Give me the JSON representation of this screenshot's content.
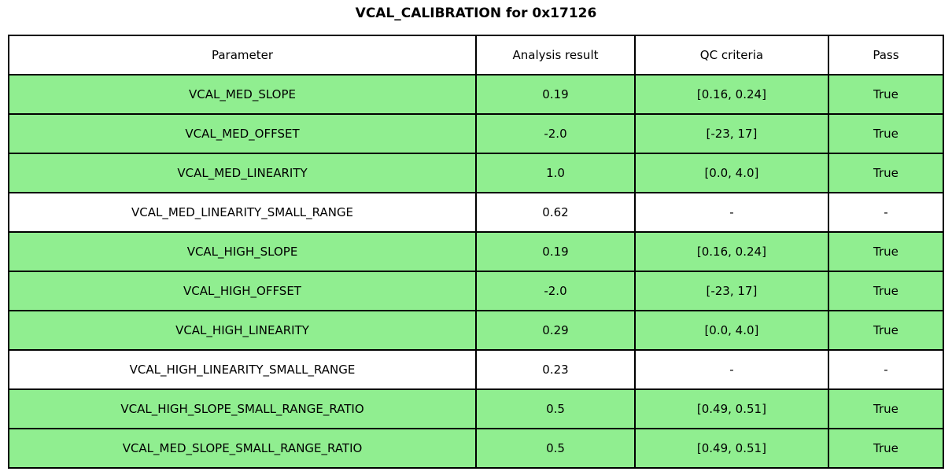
{
  "title": "VCAL_CALIBRATION for 0x17126",
  "colors": {
    "pass_row_background": "#90EE90",
    "default_row_background": "#ffffff",
    "border": "#000000",
    "text": "#000000"
  },
  "table": {
    "columns": [
      "Parameter",
      "Analysis result",
      "QC criteria",
      "Pass"
    ],
    "rows": [
      {
        "parameter": "VCAL_MED_SLOPE",
        "analysis_result": "0.19",
        "qc_criteria": "[0.16, 0.24]",
        "pass": "True",
        "highlighted": true
      },
      {
        "parameter": "VCAL_MED_OFFSET",
        "analysis_result": "-2.0",
        "qc_criteria": "[-23, 17]",
        "pass": "True",
        "highlighted": true
      },
      {
        "parameter": "VCAL_MED_LINEARITY",
        "analysis_result": "1.0",
        "qc_criteria": "[0.0, 4.0]",
        "pass": "True",
        "highlighted": true
      },
      {
        "parameter": "VCAL_MED_LINEARITY_SMALL_RANGE",
        "analysis_result": "0.62",
        "qc_criteria": "-",
        "pass": "-",
        "highlighted": false
      },
      {
        "parameter": "VCAL_HIGH_SLOPE",
        "analysis_result": "0.19",
        "qc_criteria": "[0.16, 0.24]",
        "pass": "True",
        "highlighted": true
      },
      {
        "parameter": "VCAL_HIGH_OFFSET",
        "analysis_result": "-2.0",
        "qc_criteria": "[-23, 17]",
        "pass": "True",
        "highlighted": true
      },
      {
        "parameter": "VCAL_HIGH_LINEARITY",
        "analysis_result": "0.29",
        "qc_criteria": "[0.0, 4.0]",
        "pass": "True",
        "highlighted": true
      },
      {
        "parameter": "VCAL_HIGH_LINEARITY_SMALL_RANGE",
        "analysis_result": "0.23",
        "qc_criteria": "-",
        "pass": "-",
        "highlighted": false
      },
      {
        "parameter": "VCAL_HIGH_SLOPE_SMALL_RANGE_RATIO",
        "analysis_result": "0.5",
        "qc_criteria": "[0.49, 0.51]",
        "pass": "True",
        "highlighted": true
      },
      {
        "parameter": "VCAL_MED_SLOPE_SMALL_RANGE_RATIO",
        "analysis_result": "0.5",
        "qc_criteria": "[0.49, 0.51]",
        "pass": "True",
        "highlighted": true
      }
    ]
  },
  "chart_data": {
    "type": "table",
    "title": "VCAL_CALIBRATION for 0x17126",
    "columns": [
      "Parameter",
      "Analysis result",
      "QC criteria",
      "Pass"
    ],
    "rows": [
      [
        "VCAL_MED_SLOPE",
        "0.19",
        "[0.16, 0.24]",
        "True"
      ],
      [
        "VCAL_MED_OFFSET",
        "-2.0",
        "[-23, 17]",
        "True"
      ],
      [
        "VCAL_MED_LINEARITY",
        "1.0",
        "[0.0, 4.0]",
        "True"
      ],
      [
        "VCAL_MED_LINEARITY_SMALL_RANGE",
        "0.62",
        "-",
        "-"
      ],
      [
        "VCAL_HIGH_SLOPE",
        "0.19",
        "[0.16, 0.24]",
        "True"
      ],
      [
        "VCAL_HIGH_OFFSET",
        "-2.0",
        "[-23, 17]",
        "True"
      ],
      [
        "VCAL_HIGH_LINEARITY",
        "0.29",
        "[0.0, 4.0]",
        "True"
      ],
      [
        "VCAL_HIGH_LINEARITY_SMALL_RANGE",
        "0.23",
        "-",
        "-"
      ],
      [
        "VCAL_HIGH_SLOPE_SMALL_RANGE_RATIO",
        "0.5",
        "[0.49, 0.51]",
        "True"
      ],
      [
        "VCAL_MED_SLOPE_SMALL_RANGE_RATIO",
        "0.5",
        "[0.49, 0.51]",
        "True"
      ]
    ],
    "row_highlighted": [
      true,
      true,
      true,
      false,
      true,
      true,
      true,
      false,
      true,
      true
    ],
    "layout": {
      "highlight_color": "#90EE90",
      "grid": true,
      "legend": "none"
    }
  }
}
